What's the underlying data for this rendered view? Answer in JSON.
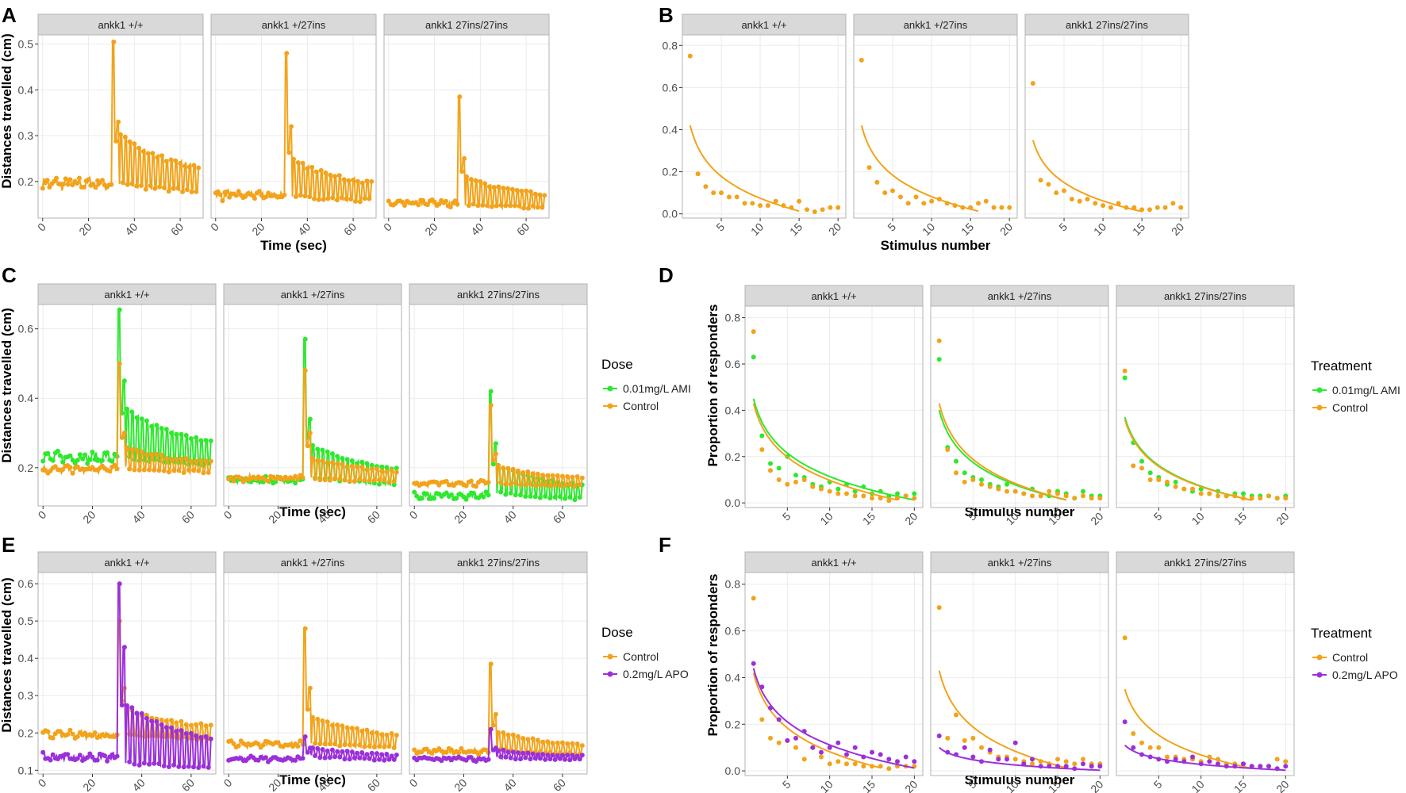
{
  "figure": {
    "strip_fill": "#d9d9d9",
    "panel_border": "#b3b3b3",
    "grid_color": "#ebebeb",
    "colors": {
      "control": "#f2a31b",
      "ami": "#2ee82e",
      "apo": "#9b30d9"
    }
  },
  "chart_data": [
    {
      "id": "A",
      "letter": "A",
      "type": "line",
      "ylabel": "Distances travelled (cm)",
      "xlabel": "Time (sec)",
      "facets": [
        "ankk1 +/+",
        "ankk1 +/27ins",
        "ankk1 27ins/27ins"
      ],
      "xlim": [
        -2,
        70
      ],
      "xticks": [
        0,
        20,
        40,
        60
      ],
      "ylim": [
        0.12,
        0.52
      ],
      "yticks": [
        0.2,
        0.3,
        0.4,
        0.5
      ],
      "legend": null,
      "series": [
        {
          "color_key": "control",
          "facets": [
            {
              "peak": 0.505,
              "second": 0.33,
              "base": 0.195,
              "post": 0.25,
              "amp": 0.055,
              "jitter": 0.01
            },
            {
              "peak": 0.48,
              "second": 0.32,
              "base": 0.17,
              "post": 0.21,
              "amp": 0.04,
              "jitter": 0.008
            },
            {
              "peak": 0.385,
              "second": 0.25,
              "base": 0.152,
              "post": 0.18,
              "amp": 0.03,
              "jitter": 0.006
            }
          ]
        }
      ]
    },
    {
      "id": "B",
      "letter": "B",
      "type": "scatter",
      "ylabel": "Proportion of responders",
      "xlabel": "Stimulus number",
      "facets": [
        "ankk1 +/+",
        "ankk1 +/27ins",
        "ankk1 27ins/27ins"
      ],
      "xlim": [
        0,
        21
      ],
      "xticks": [
        5,
        10,
        15,
        20
      ],
      "ylim": [
        -0.02,
        0.85
      ],
      "yticks": [
        0.0,
        0.2,
        0.4,
        0.6,
        0.8
      ],
      "legend": null,
      "series": [
        {
          "color_key": "control",
          "facets": [
            {
              "points": [
                0.75,
                0.19,
                0.13,
                0.1,
                0.1,
                0.08,
                0.08,
                0.05,
                0.05,
                0.04,
                0.04,
                0.06,
                0.04,
                0.03,
                0.06,
                0.02,
                0.01,
                0.02,
                0.03,
                0.03
              ],
              "fit_a": 0.42,
              "fit_end": 15
            },
            {
              "points": [
                0.73,
                0.22,
                0.15,
                0.1,
                0.11,
                0.08,
                0.05,
                0.08,
                0.05,
                0.06,
                0.07,
                0.05,
                0.04,
                0.03,
                0.03,
                0.05,
                0.06,
                0.03,
                0.03,
                0.03
              ],
              "fit_a": 0.42,
              "fit_end": 16
            },
            {
              "points": [
                0.62,
                0.16,
                0.14,
                0.1,
                0.11,
                0.07,
                0.06,
                0.07,
                0.05,
                0.04,
                0.03,
                0.05,
                0.03,
                0.03,
                0.02,
                0.02,
                0.03,
                0.03,
                0.05,
                0.03
              ],
              "fit_a": 0.35,
              "fit_end": 15
            }
          ]
        }
      ]
    },
    {
      "id": "C",
      "letter": "C",
      "type": "line",
      "ylabel": "Distances travelled (cm)",
      "xlabel": "Time (sec)",
      "facets": [
        "ankk1 +/+",
        "ankk1 +/27ins",
        "ankk1 27ins/27ins"
      ],
      "xlim": [
        -2,
        70
      ],
      "xticks": [
        0,
        20,
        40,
        60
      ],
      "ylim": [
        0.09,
        0.67
      ],
      "yticks": [
        0.2,
        0.4,
        0.6
      ],
      "legend": {
        "title": "Dose",
        "items": [
          {
            "label": "0.01mg/L AMI",
            "color_key": "ami"
          },
          {
            "label": "Control",
            "color_key": "control"
          }
        ]
      },
      "series": [
        {
          "color_key": "ami",
          "facets": [
            {
              "peak": 0.655,
              "second": 0.45,
              "base": 0.23,
              "post": 0.3,
              "amp": 0.07,
              "jitter": 0.012
            },
            {
              "peak": 0.57,
              "second": 0.34,
              "base": 0.165,
              "post": 0.22,
              "amp": 0.045,
              "jitter": 0.008
            },
            {
              "peak": 0.42,
              "second": 0.27,
              "base": 0.12,
              "post": 0.17,
              "amp": 0.04,
              "jitter": 0.008
            }
          ]
        },
        {
          "color_key": "control",
          "facets": [
            {
              "peak": 0.5,
              "second": 0.3,
              "base": 0.195,
              "post": 0.23,
              "amp": 0.03,
              "jitter": 0.008
            },
            {
              "peak": 0.48,
              "second": 0.3,
              "base": 0.17,
              "post": 0.2,
              "amp": 0.03,
              "jitter": 0.007
            },
            {
              "peak": 0.38,
              "second": 0.24,
              "base": 0.155,
              "post": 0.18,
              "amp": 0.025,
              "jitter": 0.006
            }
          ]
        }
      ]
    },
    {
      "id": "D",
      "letter": "D",
      "type": "scatter",
      "ylabel": "Proportion of responders",
      "xlabel": "Stimulus number",
      "facets": [
        "ankk1 +/+",
        "ankk1 +/27ins",
        "ankk1 27ins/27ins"
      ],
      "xlim": [
        0,
        21
      ],
      "xticks": [
        5,
        10,
        15,
        20
      ],
      "ylim": [
        -0.02,
        0.85
      ],
      "yticks": [
        0.0,
        0.2,
        0.4,
        0.6,
        0.8
      ],
      "legend": {
        "title": "Treatment",
        "items": [
          {
            "label": "0.01mg/L AMI",
            "color_key": "ami"
          },
          {
            "label": "Control",
            "color_key": "control"
          }
        ]
      },
      "series": [
        {
          "color_key": "ami",
          "facets": [
            {
              "points": [
                0.63,
                0.29,
                0.17,
                0.15,
                0.2,
                0.12,
                0.11,
                0.08,
                0.07,
                0.09,
                0.06,
                0.08,
                0.05,
                0.07,
                0.04,
                0.05,
                0.03,
                0.04,
                0.03,
                0.04
              ],
              "fit_a": 0.45,
              "fit_end": 20
            },
            {
              "points": [
                0.62,
                0.24,
                0.18,
                0.13,
                0.11,
                0.1,
                0.08,
                0.07,
                0.08,
                0.05,
                0.04,
                0.06,
                0.03,
                0.03,
                0.05,
                0.04,
                0.02,
                0.05,
                0.03,
                0.03
              ],
              "fit_a": 0.4,
              "fit_end": 16
            },
            {
              "points": [
                0.54,
                0.26,
                0.18,
                0.13,
                0.11,
                0.08,
                0.09,
                0.06,
                0.05,
                0.06,
                0.04,
                0.05,
                0.03,
                0.04,
                0.04,
                0.03,
                0.03,
                0.03,
                0.02,
                0.03
              ],
              "fit_a": 0.37,
              "fit_end": 16
            }
          ]
        },
        {
          "color_key": "control",
          "facets": [
            {
              "points": [
                0.74,
                0.23,
                0.14,
                0.1,
                0.08,
                0.09,
                0.1,
                0.07,
                0.06,
                0.05,
                0.04,
                0.04,
                0.03,
                0.03,
                0.02,
                0.02,
                0.01,
                0.02,
                0.03,
                0.02
              ],
              "fit_a": 0.43,
              "fit_end": 18
            },
            {
              "points": [
                0.7,
                0.23,
                0.13,
                0.09,
                0.1,
                0.08,
                0.07,
                0.06,
                0.05,
                0.05,
                0.04,
                0.03,
                0.03,
                0.05,
                0.04,
                0.03,
                0.02,
                0.03,
                0.02,
                0.02
              ],
              "fit_a": 0.43,
              "fit_end": 16
            },
            {
              "points": [
                0.57,
                0.16,
                0.15,
                0.1,
                0.1,
                0.09,
                0.07,
                0.06,
                0.06,
                0.04,
                0.04,
                0.03,
                0.03,
                0.03,
                0.02,
                0.02,
                0.02,
                0.03,
                0.02,
                0.02
              ],
              "fit_a": 0.36,
              "fit_end": 16
            }
          ]
        }
      ]
    },
    {
      "id": "E",
      "letter": "E",
      "type": "line",
      "ylabel": "Distances travelled (cm)",
      "xlabel": "Time (sec)",
      "facets": [
        "ankk1 +/+",
        "ankk1 +/27ins",
        "ankk1 27ins/27ins"
      ],
      "xlim": [
        -2,
        70
      ],
      "xticks": [
        0,
        20,
        40,
        60
      ],
      "ylim": [
        0.09,
        0.63
      ],
      "yticks": [
        0.1,
        0.2,
        0.3,
        0.4,
        0.5,
        0.6
      ],
      "legend": {
        "title": "Dose",
        "items": [
          {
            "label": "Control",
            "color_key": "control"
          },
          {
            "label": "0.2mg/L APO",
            "color_key": "apo"
          }
        ]
      },
      "series": [
        {
          "color_key": "control",
          "facets": [
            {
              "peak": 0.5,
              "second": 0.32,
              "base": 0.195,
              "post": 0.23,
              "amp": 0.035,
              "jitter": 0.008
            },
            {
              "peak": 0.48,
              "second": 0.32,
              "base": 0.17,
              "post": 0.21,
              "amp": 0.035,
              "jitter": 0.007
            },
            {
              "peak": 0.385,
              "second": 0.25,
              "base": 0.15,
              "post": 0.18,
              "amp": 0.025,
              "jitter": 0.006
            }
          ]
        },
        {
          "color_key": "apo",
          "facets": [
            {
              "peak": 0.6,
              "second": 0.43,
              "base": 0.135,
              "post": 0.2,
              "amp": 0.08,
              "jitter": 0.008
            },
            {
              "peak": 0.19,
              "second": 0.16,
              "base": 0.13,
              "post": 0.15,
              "amp": 0.012,
              "jitter": 0.006
            },
            {
              "peak": 0.21,
              "second": 0.16,
              "base": 0.13,
              "post": 0.145,
              "amp": 0.01,
              "jitter": 0.005
            }
          ]
        }
      ]
    },
    {
      "id": "F",
      "letter": "F",
      "type": "scatter",
      "ylabel": "Proportion of responders",
      "xlabel": "Stimulus number",
      "facets": [
        "ankk1 +/+",
        "ankk1 +/27ins",
        "ankk1 27ins/27ins"
      ],
      "xlim": [
        0,
        21
      ],
      "xticks": [
        5,
        10,
        15,
        20
      ],
      "ylim": [
        -0.02,
        0.85
      ],
      "yticks": [
        0.0,
        0.2,
        0.4,
        0.6,
        0.8
      ],
      "legend": {
        "title": "Treatment",
        "items": [
          {
            "label": "Control",
            "color_key": "control"
          },
          {
            "label": "0.2mg/L APO",
            "color_key": "apo"
          }
        ]
      },
      "series": [
        {
          "color_key": "control",
          "facets": [
            {
              "points": [
                0.74,
                0.22,
                0.14,
                0.12,
                0.13,
                0.1,
                0.05,
                0.1,
                0.06,
                0.03,
                0.04,
                0.03,
                0.03,
                0.02,
                0.02,
                0.02,
                0.01,
                0.02,
                0.02,
                0.02
              ],
              "fit_a": 0.42,
              "fit_end": 16
            },
            {
              "points": [
                0.7,
                0.14,
                0.24,
                0.13,
                0.14,
                0.1,
                0.08,
                0.06,
                0.06,
                0.05,
                0.04,
                0.03,
                0.04,
                0.03,
                0.05,
                0.04,
                0.03,
                0.05,
                0.03,
                0.03
              ],
              "fit_a": 0.43,
              "fit_end": 16
            },
            {
              "points": [
                0.57,
                0.16,
                0.12,
                0.1,
                0.1,
                0.06,
                0.06,
                0.05,
                0.05,
                0.04,
                0.06,
                0.05,
                0.03,
                0.03,
                0.03,
                0.02,
                0.02,
                0.02,
                0.05,
                0.04
              ],
              "fit_a": 0.35,
              "fit_end": 16
            }
          ]
        },
        {
          "color_key": "apo",
          "facets": [
            {
              "points": [
                0.46,
                0.36,
                0.27,
                0.22,
                0.13,
                0.14,
                0.17,
                0.1,
                0.08,
                0.1,
                0.12,
                0.07,
                0.1,
                0.06,
                0.08,
                0.07,
                0.05,
                0.04,
                0.06,
                0.04
              ],
              "fit_a": 0.44,
              "fit_end": 20
            },
            {
              "points": [
                0.15,
                0.08,
                0.07,
                0.1,
                0.06,
                0.04,
                0.09,
                0.05,
                0.05,
                0.12,
                0.03,
                0.05,
                0.02,
                0.02,
                0.02,
                0.02,
                0.01,
                0.03,
                0.02,
                0.02
              ],
              "fit_a": 0.1,
              "fit_end": 20
            },
            {
              "points": [
                0.21,
                0.1,
                0.07,
                0.06,
                0.05,
                0.04,
                0.05,
                0.04,
                0.06,
                0.03,
                0.04,
                0.03,
                0.02,
                0.02,
                0.03,
                0.02,
                0.02,
                0.02,
                0.01,
                0.02
              ],
              "fit_a": 0.11,
              "fit_end": 20
            }
          ]
        }
      ]
    }
  ]
}
